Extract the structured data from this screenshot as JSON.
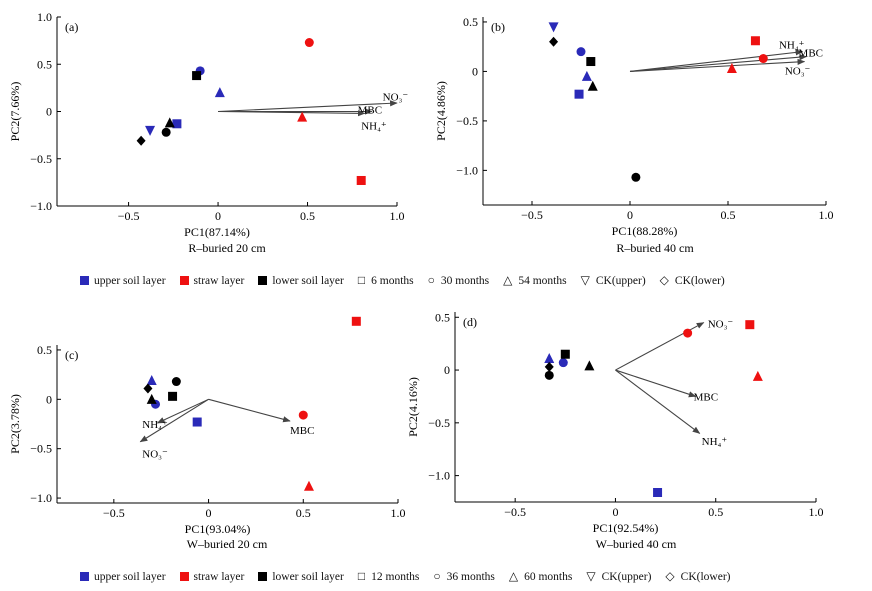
{
  "chart_data": [
    {
      "type": "scatter",
      "panel": "(a)",
      "subtitle": "R–buried 20 cm",
      "xlabel": "PC1(87.14%)",
      "ylabel": "PC2(7.66%)",
      "xlim": [
        -0.9,
        1.0
      ],
      "ylim": [
        -1.0,
        1.0
      ],
      "xticks": [
        -0.5,
        0,
        0.5,
        1.0
      ],
      "xtick_labels": [
        "−0.5",
        "0",
        "0.5",
        "1.0"
      ],
      "yticks": [
        -1.0,
        -0.5,
        0,
        0.5,
        1.0
      ],
      "ytick_labels": [
        "−1.0",
        "−0.5",
        "0",
        "0.5",
        "1.0"
      ],
      "points": [
        {
          "layer": "upper",
          "shape": "circle",
          "x": -0.1,
          "y": 0.43
        },
        {
          "layer": "upper",
          "shape": "triangle",
          "x": 0.01,
          "y": 0.2
        },
        {
          "layer": "upper",
          "shape": "square",
          "x": -0.23,
          "y": -0.13
        },
        {
          "layer": "upper",
          "shape": "tri-down",
          "x": -0.38,
          "y": -0.2
        },
        {
          "layer": "straw",
          "shape": "circle",
          "x": 0.51,
          "y": 0.73
        },
        {
          "layer": "straw",
          "shape": "triangle",
          "x": 0.47,
          "y": -0.06
        },
        {
          "layer": "straw",
          "shape": "square",
          "x": 0.8,
          "y": -0.73
        },
        {
          "layer": "lower",
          "shape": "square",
          "x": -0.12,
          "y": 0.38
        },
        {
          "layer": "lower",
          "shape": "triangle",
          "x": -0.27,
          "y": -0.12
        },
        {
          "layer": "lower",
          "shape": "circle",
          "x": -0.29,
          "y": -0.22
        },
        {
          "layer": "lower",
          "shape": "diamond",
          "x": -0.43,
          "y": -0.31
        }
      ],
      "vectors": [
        {
          "label": "NO₃⁻",
          "x": 1.0,
          "y": 0.09,
          "lx": 0.92,
          "ly": 0.16
        },
        {
          "label": "MBC",
          "x": 0.86,
          "y": 0.0,
          "lx": 0.78,
          "ly": 0.02
        },
        {
          "label": "NH₄⁺",
          "x": 0.82,
          "y": -0.02,
          "lx": 0.8,
          "ly": -0.15
        }
      ]
    },
    {
      "type": "scatter",
      "panel": "(b)",
      "subtitle": "R–buried 40 cm",
      "xlabel": "PC1(88.28%)",
      "ylabel": "PC2(4.86%)",
      "xlim": [
        -0.75,
        1.0
      ],
      "ylim": [
        -1.35,
        0.55
      ],
      "xticks": [
        -0.5,
        0,
        0.5,
        1.0
      ],
      "xtick_labels": [
        "−0.5",
        "0",
        "0.5",
        "1.0"
      ],
      "yticks": [
        -1.0,
        -0.5,
        0,
        0.5
      ],
      "ytick_labels": [
        "−1.0",
        "−0.5",
        "0",
        "0.5"
      ],
      "points": [
        {
          "layer": "upper",
          "shape": "tri-down",
          "x": -0.39,
          "y": 0.45
        },
        {
          "layer": "upper",
          "shape": "circle",
          "x": -0.25,
          "y": 0.2
        },
        {
          "layer": "upper",
          "shape": "triangle",
          "x": -0.22,
          "y": -0.05
        },
        {
          "layer": "upper",
          "shape": "square",
          "x": -0.26,
          "y": -0.23
        },
        {
          "layer": "lower",
          "shape": "diamond",
          "x": -0.39,
          "y": 0.3
        },
        {
          "layer": "lower",
          "shape": "square",
          "x": -0.2,
          "y": 0.1
        },
        {
          "layer": "lower",
          "shape": "triangle",
          "x": -0.19,
          "y": -0.15
        },
        {
          "layer": "lower",
          "shape": "circle",
          "x": 0.03,
          "y": -1.07
        },
        {
          "layer": "straw",
          "shape": "square",
          "x": 0.64,
          "y": 0.31
        },
        {
          "layer": "straw",
          "shape": "circle",
          "x": 0.68,
          "y": 0.13
        },
        {
          "layer": "straw",
          "shape": "triangle",
          "x": 0.52,
          "y": 0.03
        }
      ],
      "vectors": [
        {
          "label": "NH₄⁺",
          "x": 0.88,
          "y": 0.2,
          "lx": 0.76,
          "ly": 0.27
        },
        {
          "label": "MBC",
          "x": 0.9,
          "y": 0.15,
          "lx": 0.86,
          "ly": 0.19
        },
        {
          "label": "NO₃⁻",
          "x": 0.89,
          "y": 0.1,
          "lx": 0.79,
          "ly": 0.01
        }
      ]
    },
    {
      "type": "scatter",
      "panel": "(c)",
      "subtitle": "W–buried 20 cm",
      "xlabel": "PC1(93.04%)",
      "ylabel": "PC2(3.78%)",
      "xlim": [
        -0.8,
        1.0
      ],
      "ylim": [
        -1.05,
        0.55
      ],
      "xticks": [
        -0.5,
        0,
        0.5,
        1.0
      ],
      "xtick_labels": [
        "−0.5",
        "0",
        "0.5",
        "1.0"
      ],
      "yticks": [
        -1.0,
        -0.5,
        0,
        0.5
      ],
      "ytick_labels": [
        "−1.0",
        "−0.5",
        "0",
        "0.5"
      ],
      "points": [
        {
          "layer": "straw",
          "shape": "square",
          "x": 0.78,
          "y": 0.79
        },
        {
          "layer": "straw",
          "shape": "circle",
          "x": 0.5,
          "y": -0.16
        },
        {
          "layer": "straw",
          "shape": "triangle",
          "x": 0.53,
          "y": -0.88
        },
        {
          "layer": "upper",
          "shape": "triangle",
          "x": -0.3,
          "y": 0.19
        },
        {
          "layer": "upper",
          "shape": "circle",
          "x": -0.28,
          "y": -0.05
        },
        {
          "layer": "upper",
          "shape": "square",
          "x": -0.06,
          "y": -0.23
        },
        {
          "layer": "lower",
          "shape": "circle",
          "x": -0.17,
          "y": 0.18
        },
        {
          "layer": "lower",
          "shape": "diamond",
          "x": -0.32,
          "y": 0.11
        },
        {
          "layer": "lower",
          "shape": "square",
          "x": -0.19,
          "y": 0.03
        },
        {
          "layer": "lower",
          "shape": "triangle",
          "x": -0.3,
          "y": 0.0
        }
      ],
      "vectors": [
        {
          "label": "MBC",
          "x": 0.43,
          "y": -0.22,
          "lx": 0.43,
          "ly": -0.31
        },
        {
          "label": "NH₄⁺",
          "x": -0.27,
          "y": -0.24,
          "lx": -0.35,
          "ly": -0.25
        },
        {
          "label": "NO₃⁻",
          "x": -0.36,
          "y": -0.43,
          "lx": -0.35,
          "ly": -0.55
        }
      ]
    },
    {
      "type": "scatter",
      "panel": "(d)",
      "subtitle": "W–buried 40 cm",
      "xlabel": "PC1(92.54%)",
      "ylabel": "PC2(4.16%)",
      "xlim": [
        -0.8,
        1.0
      ],
      "ylim": [
        -1.25,
        0.55
      ],
      "xticks": [
        -0.5,
        0,
        0.5,
        1.0
      ],
      "xtick_labels": [
        "−0.5",
        "0",
        "0.5",
        "1.0"
      ],
      "yticks": [
        -1.0,
        -0.5,
        0,
        0.5
      ],
      "ytick_labels": [
        "−1.0",
        "−0.5",
        "0",
        "0.5"
      ],
      "points": [
        {
          "layer": "straw",
          "shape": "square",
          "x": 0.67,
          "y": 0.43
        },
        {
          "layer": "straw",
          "shape": "circle",
          "x": 0.36,
          "y": 0.35
        },
        {
          "layer": "straw",
          "shape": "triangle",
          "x": 0.71,
          "y": -0.06
        },
        {
          "layer": "upper",
          "shape": "circle",
          "x": -0.26,
          "y": 0.07
        },
        {
          "layer": "upper",
          "shape": "triangle",
          "x": -0.33,
          "y": 0.11
        },
        {
          "layer": "upper",
          "shape": "square",
          "x": 0.21,
          "y": -1.16
        },
        {
          "layer": "lower",
          "shape": "square",
          "x": -0.25,
          "y": 0.15
        },
        {
          "layer": "lower",
          "shape": "triangle",
          "x": -0.13,
          "y": 0.04
        },
        {
          "layer": "lower",
          "shape": "circle",
          "x": -0.33,
          "y": -0.05
        },
        {
          "layer": "lower",
          "shape": "diamond",
          "x": -0.33,
          "y": 0.03
        }
      ],
      "vectors": [
        {
          "label": "NO₃⁻",
          "x": 0.44,
          "y": 0.45,
          "lx": 0.46,
          "ly": 0.44
        },
        {
          "label": "MBC",
          "x": 0.4,
          "y": -0.25,
          "lx": 0.39,
          "ly": -0.25
        },
        {
          "label": "NH₄⁺",
          "x": 0.42,
          "y": -0.6,
          "lx": 0.43,
          "ly": -0.67
        }
      ]
    }
  ],
  "colors": {
    "upper": "#2a2ab8",
    "straw": "#ee1111",
    "lower": "#000000",
    "vector": "#444444"
  },
  "legends": [
    {
      "layers": [
        "upper soil layer",
        "straw layer",
        "lower soil layer"
      ],
      "shapes": [
        {
          "icon": "□",
          "label": "6 months"
        },
        {
          "icon": "○",
          "label": "30 months"
        },
        {
          "icon": "△",
          "label": "54 months"
        },
        {
          "icon": "▽",
          "label": "CK(upper)"
        },
        {
          "icon": "◇",
          "label": "CK(lower)"
        }
      ]
    },
    {
      "layers": [
        "upper soil layer",
        "straw layer",
        "lower soil layer"
      ],
      "shapes": [
        {
          "icon": "□",
          "label": "12 months"
        },
        {
          "icon": "○",
          "label": "36 months"
        },
        {
          "icon": "△",
          "label": "60 months"
        },
        {
          "icon": "▽",
          "label": "CK(upper)"
        },
        {
          "icon": "◇",
          "label": "CK(lower)"
        }
      ]
    }
  ]
}
